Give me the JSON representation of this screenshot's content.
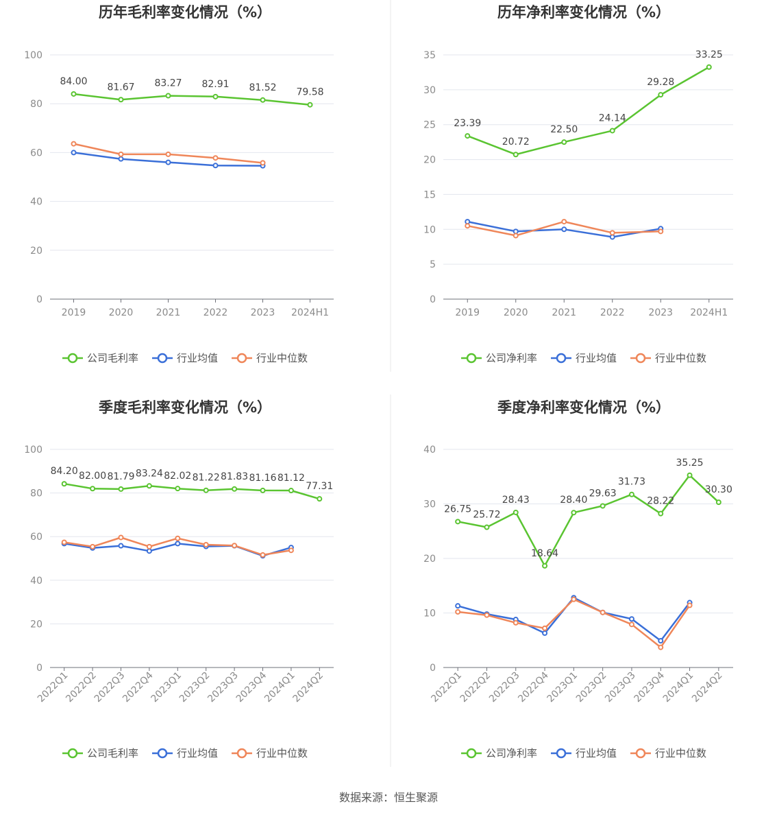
{
  "source_text": "数据来源：恒生聚源",
  "legend_marker_style": "line-with-hollow-circle",
  "chart_data": [
    {
      "type": "line",
      "title": "历年毛利率变化情况（%）",
      "categories": [
        "2019",
        "2020",
        "2021",
        "2022",
        "2023",
        "2024H1"
      ],
      "ylim": [
        0,
        100
      ],
      "yticks": [
        "0",
        "20",
        "40",
        "60",
        "80",
        "100"
      ],
      "grid": true,
      "rotated_x_labels": false,
      "legend_position": "bottom-center",
      "series": [
        {
          "name": "公司毛利率",
          "color": "#5ac431",
          "values": [
            84.0,
            81.67,
            83.27,
            82.91,
            81.52,
            79.58
          ],
          "labels": [
            "84.00",
            "81.67",
            "83.27",
            "82.91",
            "81.52",
            "79.58"
          ]
        },
        {
          "name": "行业均值",
          "color": "#3a6fd8",
          "values": [
            60.0,
            57.4,
            56.0,
            54.7,
            54.6,
            null
          ]
        },
        {
          "name": "行业中位数",
          "color": "#ef8659",
          "values": [
            63.6,
            59.3,
            59.3,
            57.8,
            55.8,
            null
          ]
        }
      ]
    },
    {
      "type": "line",
      "title": "历年净利率变化情况（%）",
      "categories": [
        "2019",
        "2020",
        "2021",
        "2022",
        "2023",
        "2024H1"
      ],
      "ylim": [
        0,
        35
      ],
      "yticks": [
        "0",
        "5",
        "10",
        "15",
        "20",
        "25",
        "30",
        "35"
      ],
      "grid": true,
      "rotated_x_labels": false,
      "legend_position": "bottom-center",
      "series": [
        {
          "name": "公司净利率",
          "color": "#5ac431",
          "values": [
            23.39,
            20.72,
            22.5,
            24.14,
            29.28,
            33.25
          ],
          "labels": [
            "23.39",
            "20.72",
            "22.50",
            "24.14",
            "29.28",
            "33.25"
          ]
        },
        {
          "name": "行业均值",
          "color": "#3a6fd8",
          "values": [
            11.1,
            9.7,
            10.0,
            8.9,
            10.1,
            null
          ]
        },
        {
          "name": "行业中位数",
          "color": "#ef8659",
          "values": [
            10.5,
            9.1,
            11.1,
            9.5,
            9.7,
            null
          ]
        }
      ]
    },
    {
      "type": "line",
      "title": "季度毛利率变化情况（%）",
      "categories": [
        "2022Q1",
        "2022Q2",
        "2022Q3",
        "2022Q4",
        "2023Q1",
        "2023Q2",
        "2023Q3",
        "2023Q4",
        "2024Q1",
        "2024Q2"
      ],
      "ylim": [
        0,
        100
      ],
      "yticks": [
        "0",
        "20",
        "40",
        "60",
        "80",
        "100"
      ],
      "grid": true,
      "rotated_x_labels": true,
      "legend_position": "bottom-center",
      "series": [
        {
          "name": "公司毛利率",
          "color": "#5ac431",
          "values": [
            84.2,
            82.0,
            81.79,
            83.24,
            82.02,
            81.22,
            81.83,
            81.16,
            81.12,
            77.31
          ],
          "labels": [
            "84.20",
            "82.00",
            "81.79",
            "83.24",
            "82.02",
            "81.22",
            "81.83",
            "81.16",
            "81.12",
            "77.31"
          ]
        },
        {
          "name": "行业均值",
          "color": "#3a6fd8",
          "values": [
            56.8,
            54.8,
            55.8,
            53.4,
            56.8,
            55.5,
            55.8,
            51.2,
            55.0,
            null
          ]
        },
        {
          "name": "行业中位数",
          "color": "#ef8659",
          "values": [
            57.4,
            55.4,
            59.6,
            55.4,
            59.2,
            56.3,
            55.9,
            51.6,
            53.7,
            null
          ]
        }
      ]
    },
    {
      "type": "line",
      "title": "季度净利率变化情况（%）",
      "categories": [
        "2022Q1",
        "2022Q2",
        "2022Q3",
        "2022Q4",
        "2023Q1",
        "2023Q2",
        "2023Q3",
        "2023Q4",
        "2024Q1",
        "2024Q2"
      ],
      "ylim": [
        0,
        40
      ],
      "yticks": [
        "0",
        "10",
        "20",
        "30",
        "40"
      ],
      "grid": true,
      "rotated_x_labels": true,
      "legend_position": "bottom-center",
      "series": [
        {
          "name": "公司净利率",
          "color": "#5ac431",
          "values": [
            26.75,
            25.72,
            28.43,
            18.64,
            28.4,
            29.63,
            31.73,
            28.22,
            35.25,
            30.3
          ],
          "labels": [
            "26.75",
            "25.72",
            "28.43",
            "18.64",
            "28.40",
            "29.63",
            "31.73",
            "28.22",
            "35.25",
            "30.30"
          ]
        },
        {
          "name": "行业均值",
          "color": "#3a6fd8",
          "values": [
            11.3,
            9.8,
            8.8,
            6.3,
            12.8,
            10.1,
            8.9,
            4.9,
            11.9,
            null
          ]
        },
        {
          "name": "行业中位数",
          "color": "#ef8659",
          "values": [
            10.2,
            9.6,
            8.2,
            7.2,
            12.5,
            10.1,
            7.9,
            3.7,
            11.4,
            null
          ]
        }
      ]
    }
  ]
}
